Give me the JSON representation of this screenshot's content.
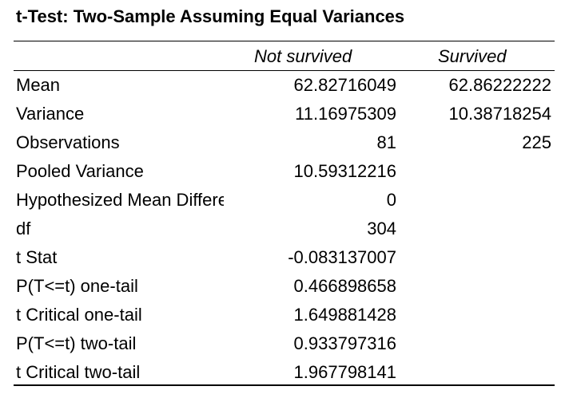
{
  "title": "t-Test: Two-Sample Assuming Equal Variances",
  "columns": [
    "Not survived",
    "Survived"
  ],
  "rows": [
    {
      "label": "Mean",
      "a": "62.82716049",
      "b": "62.86222222"
    },
    {
      "label": "Variance",
      "a": "11.16975309",
      "b": "10.38718254"
    },
    {
      "label": "Observations",
      "a": "81",
      "b": "225"
    },
    {
      "label": "Pooled Variance",
      "a": "10.59312216",
      "b": ""
    },
    {
      "label": "Hypothesized Mean Difference",
      "a": "0",
      "b": ""
    },
    {
      "label": "df",
      "a": "304",
      "b": ""
    },
    {
      "label": "t Stat",
      "a": "-0.083137007",
      "b": ""
    },
    {
      "label": "P(T<=t) one-tail",
      "a": "0.466898658",
      "b": ""
    },
    {
      "label": "t Critical one-tail",
      "a": "1.649881428",
      "b": ""
    },
    {
      "label": "P(T<=t) two-tail",
      "a": "0.933797316",
      "b": ""
    },
    {
      "label": "t Critical two-tail",
      "a": "1.967798141",
      "b": ""
    }
  ]
}
